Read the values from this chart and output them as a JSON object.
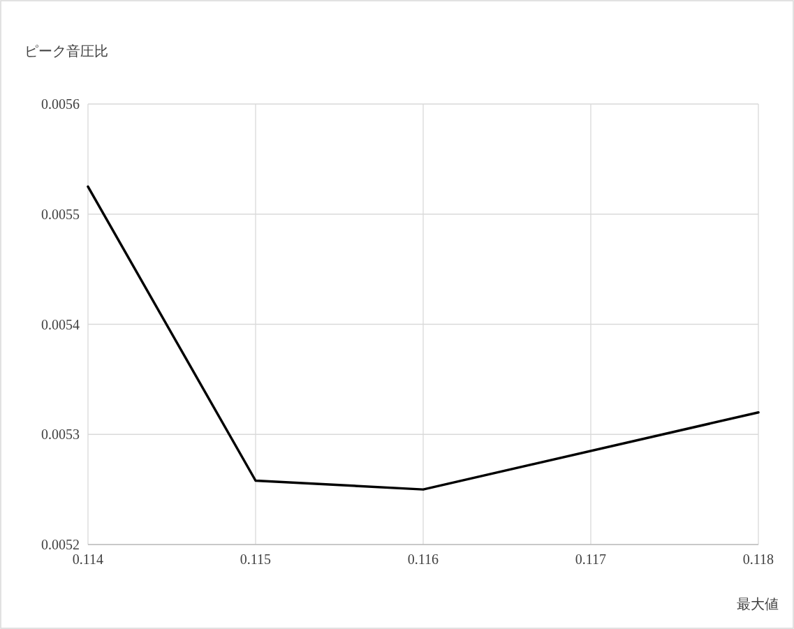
{
  "chart_data": {
    "type": "line",
    "ylabel": "ピーク音圧比",
    "xlabel": "最大値",
    "x": [
      0.114,
      0.115,
      0.116,
      0.118
    ],
    "series": [
      {
        "color": "#000000",
        "values": [
          0.005525,
          0.005258,
          0.00525,
          0.00532
        ]
      }
    ],
    "xlim": [
      0.114,
      0.118
    ],
    "xticks": [
      0.114,
      0.115,
      0.116,
      0.117,
      0.118
    ],
    "ylim": [
      0.0052,
      0.0056
    ],
    "yticks": [
      0.0052,
      0.0053,
      0.0054,
      0.0055,
      0.0056
    ],
    "grid": true,
    "marker": "none"
  }
}
